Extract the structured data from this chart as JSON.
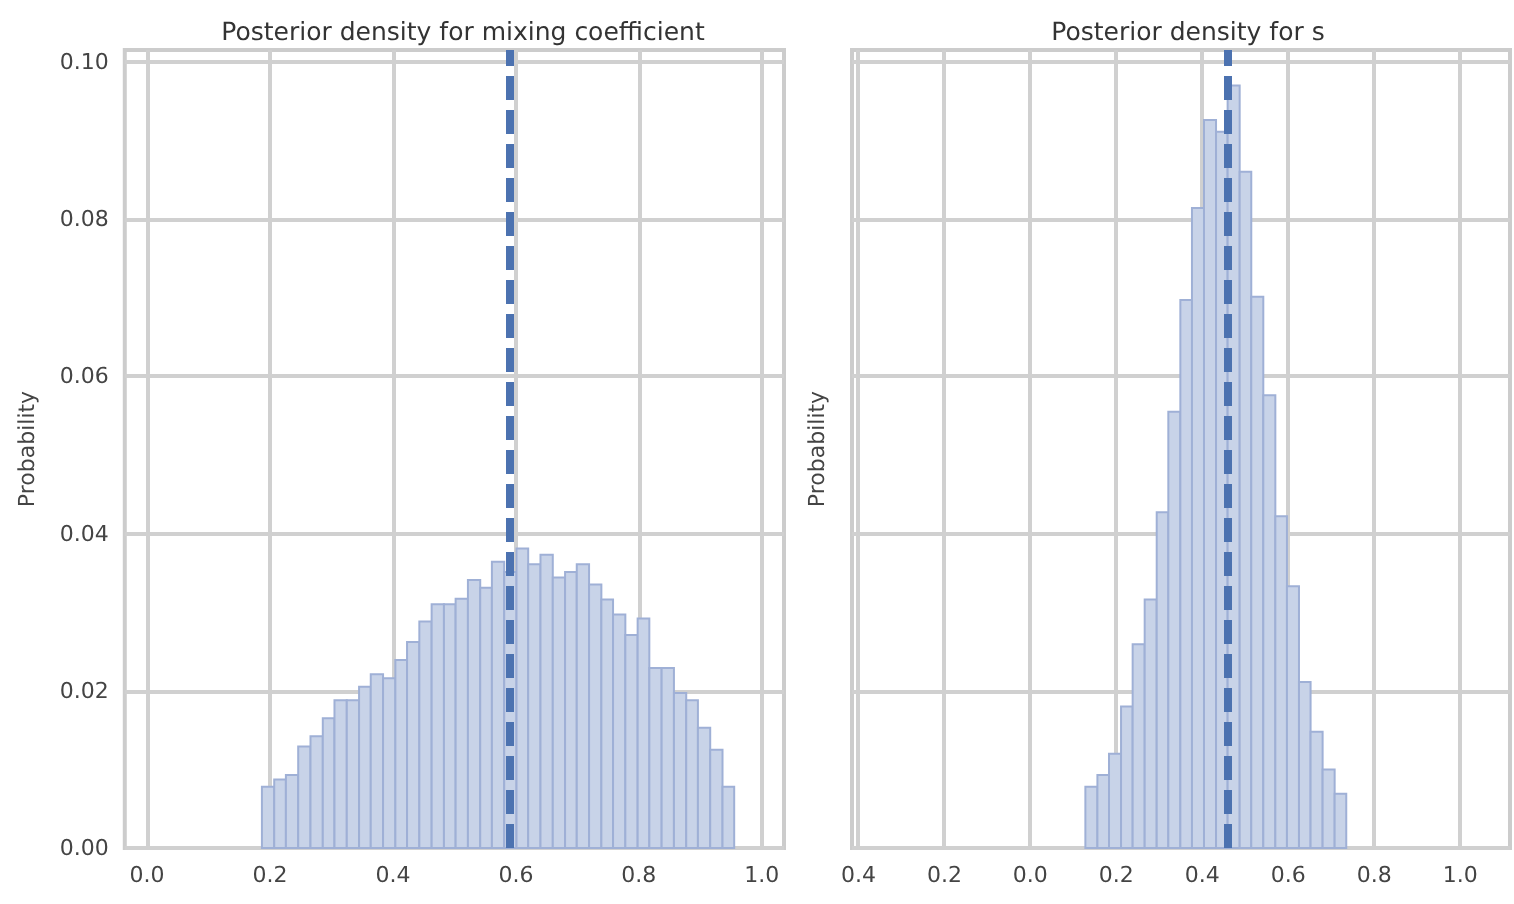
{
  "chart_data": [
    {
      "type": "histogram",
      "title": "Posterior density for mixing coefficient",
      "ylabel": "Probability",
      "color": "#c8d3e8",
      "bins": [
        0.187,
        0.207,
        0.226,
        0.246,
        0.266,
        0.286,
        0.305,
        0.325,
        0.345,
        0.364,
        0.384,
        0.404,
        0.423,
        0.443,
        0.463,
        0.483,
        0.502,
        0.522,
        0.542,
        0.561,
        0.581,
        0.601,
        0.62,
        0.64,
        0.66,
        0.68,
        0.699,
        0.719,
        0.739,
        0.758,
        0.778,
        0.798,
        0.817,
        0.837,
        0.857,
        0.877,
        0.896,
        0.916,
        0.936,
        0.955
      ],
      "values": [
        0.0078,
        0.0087,
        0.0093,
        0.0129,
        0.0142,
        0.0165,
        0.0188,
        0.0188,
        0.0205,
        0.0221,
        0.0216,
        0.0239,
        0.0262,
        0.0288,
        0.031,
        0.031,
        0.0317,
        0.0341,
        0.0331,
        0.0364,
        0.0351,
        0.0381,
        0.0361,
        0.0373,
        0.0344,
        0.0351,
        0.0361,
        0.0335,
        0.0316,
        0.0297,
        0.0271,
        0.0292,
        0.0229,
        0.0229,
        0.0197,
        0.0188,
        0.0153,
        0.0125,
        0.0078
      ],
      "xlim": [
        -0.036,
        1.036
      ],
      "xticks": [
        {
          "value": 0,
          "label": "0.0"
        },
        {
          "value": 0.2,
          "label": "0.2"
        },
        {
          "value": 0.4,
          "label": "0.4"
        },
        {
          "value": 0.6,
          "label": "0.6"
        },
        {
          "value": 0.8,
          "label": "0.8"
        },
        {
          "value": 1,
          "label": "1.0"
        }
      ],
      "ylim": [
        0,
        0.1015
      ],
      "yticks": [
        {
          "value": 0,
          "label": "0.00"
        },
        {
          "value": 0.02,
          "label": "0.02"
        },
        {
          "value": 0.04,
          "label": "0.04"
        },
        {
          "value": 0.06,
          "label": "0.06"
        },
        {
          "value": 0.08,
          "label": "0.08"
        },
        {
          "value": 0.1,
          "label": "0.10"
        }
      ],
      "grid": true,
      "ref_lines": [
        {
          "axis": "x",
          "value": 0.593,
          "color": "#4c72b0",
          "line_style": "dashed"
        }
      ]
    },
    {
      "type": "histogram",
      "title": "Posterior density for s",
      "ylabel": "Probability",
      "color": "#c8d3e8",
      "bins": [
        0.128,
        0.156,
        0.183,
        0.211,
        0.238,
        0.266,
        0.294,
        0.321,
        0.349,
        0.376,
        0.404,
        0.432,
        0.459,
        0.487,
        0.514,
        0.542,
        0.57,
        0.597,
        0.625,
        0.652,
        0.68,
        0.708,
        0.735
      ],
      "values": [
        0.0078,
        0.0093,
        0.012,
        0.018,
        0.0259,
        0.0316,
        0.0427,
        0.0555,
        0.0697,
        0.0814,
        0.0926,
        0.0911,
        0.097,
        0.086,
        0.0701,
        0.0576,
        0.0422,
        0.0333,
        0.0211,
        0.0148,
        0.01,
        0.0069
      ],
      "xlim": [
        -0.415,
        1.116
      ],
      "xticks": [
        {
          "value": -0.4,
          "label": "0.4"
        },
        {
          "value": -0.2,
          "label": "0.2"
        },
        {
          "value": 0,
          "label": "0.0"
        },
        {
          "value": 0.2,
          "label": "0.2"
        },
        {
          "value": 0.4,
          "label": "0.4"
        },
        {
          "value": 0.6,
          "label": "0.6"
        },
        {
          "value": 0.8,
          "label": "0.8"
        },
        {
          "value": 1,
          "label": "1.0"
        }
      ],
      "ylim": [
        0,
        0.1015
      ],
      "yticks": [
        {
          "value": 0,
          "label": null
        },
        {
          "value": 0.02,
          "label": null
        },
        {
          "value": 0.04,
          "label": null
        },
        {
          "value": 0.06,
          "label": null
        },
        {
          "value": 0.08,
          "label": null
        },
        {
          "value": 0.1,
          "label": null
        }
      ],
      "grid": true,
      "tick_labels": "x",
      "ref_lines": [
        {
          "axis": "x",
          "value": 0.455,
          "color": "#4c72b0",
          "line_style": "dashed"
        }
      ]
    }
  ]
}
